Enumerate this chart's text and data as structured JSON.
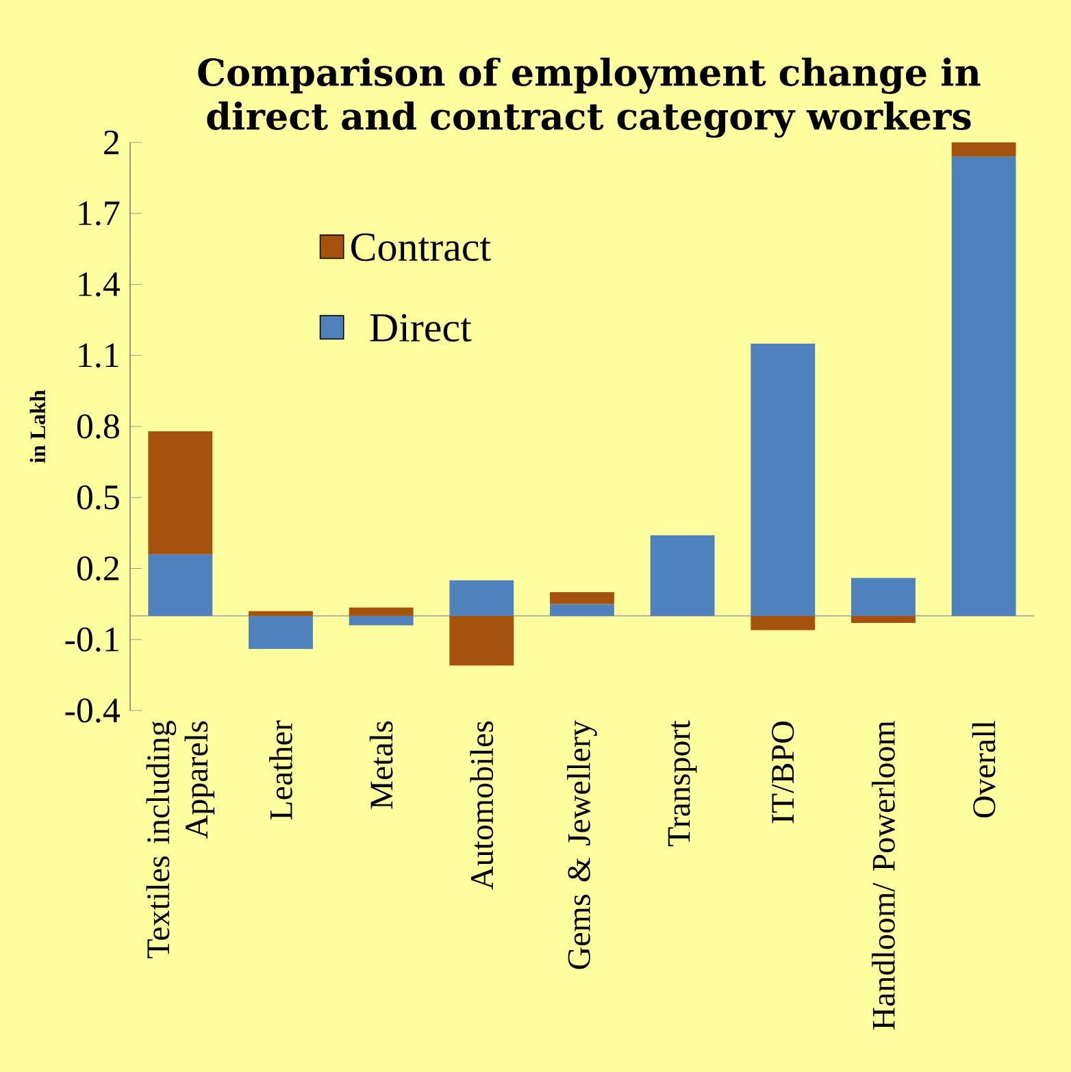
{
  "chart_data": {
    "type": "bar",
    "title": "Comparison of employment change in direct and contract category workers",
    "ylabel": "in Lakh",
    "categories": [
      "Textiles including Apparels",
      "Leather",
      "Metals",
      "Automobiles",
      "Gems & Jewellery",
      "Transport",
      "IT/BPO",
      "Handloom/ Powerloom",
      "Overall"
    ],
    "stacked": true,
    "series": [
      {
        "name": "Direct",
        "color": "#4f81bd",
        "values": [
          0.26,
          -0.14,
          -0.04,
          0.15,
          0.05,
          0.34,
          1.15,
          0.16,
          1.94
        ]
      },
      {
        "name": "Contract",
        "color": "#a5520f",
        "values": [
          0.52,
          0.02,
          0.035,
          -0.21,
          0.05,
          0,
          -0.06,
          -0.03,
          0.06
        ]
      }
    ],
    "ylim": [
      -0.4,
      2
    ],
    "yticks": [
      -0.4,
      -0.1,
      0.2,
      0.5,
      0.8,
      1.1,
      1.4,
      1.7,
      2
    ],
    "legend": "top left"
  }
}
